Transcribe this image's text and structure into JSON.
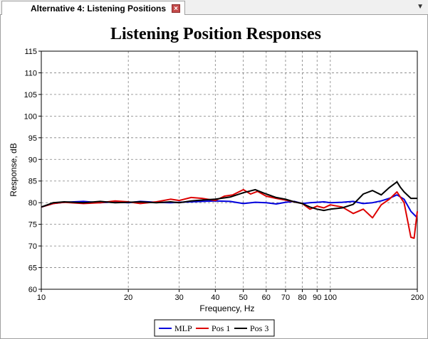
{
  "tab": {
    "label": "Alternative 4: Listening Positions",
    "close_glyph": "×",
    "menu_glyph": "▼"
  },
  "chart_data": {
    "type": "line",
    "title": "Listening Position Responses",
    "xlabel": "Frequency, Hz",
    "ylabel": "Response, dB",
    "xscale": "log",
    "xlim": [
      10,
      200
    ],
    "ylim": [
      60,
      115
    ],
    "x_ticks": [
      10,
      20,
      30,
      40,
      50,
      60,
      70,
      80,
      90,
      100,
      200
    ],
    "y_ticks": [
      60,
      65,
      70,
      75,
      80,
      85,
      90,
      95,
      100,
      105,
      110,
      115
    ],
    "grid": true,
    "legend_position": "bottom-center",
    "series": [
      {
        "name": "MLP",
        "color": "#0000dd",
        "points": [
          [
            10,
            79
          ],
          [
            11,
            79.8
          ],
          [
            12,
            80.1
          ],
          [
            14,
            80.3
          ],
          [
            16,
            80
          ],
          [
            18,
            80.2
          ],
          [
            20,
            80
          ],
          [
            22,
            80.3
          ],
          [
            25,
            80.1
          ],
          [
            28,
            80
          ],
          [
            30,
            80.1
          ],
          [
            33,
            80.2
          ],
          [
            36,
            80.3
          ],
          [
            40,
            80.4
          ],
          [
            45,
            80.3
          ],
          [
            50,
            79.8
          ],
          [
            55,
            80.1
          ],
          [
            60,
            80
          ],
          [
            65,
            79.7
          ],
          [
            70,
            80.1
          ],
          [
            75,
            80.3
          ],
          [
            80,
            79.8
          ],
          [
            85,
            80
          ],
          [
            90,
            80.1
          ],
          [
            95,
            80.2
          ],
          [
            100,
            80
          ],
          [
            110,
            80.1
          ],
          [
            120,
            80.3
          ],
          [
            130,
            79.8
          ],
          [
            140,
            80
          ],
          [
            150,
            80.4
          ],
          [
            160,
            81
          ],
          [
            170,
            81.8
          ],
          [
            180,
            80.8
          ],
          [
            190,
            78
          ],
          [
            200,
            76.5
          ]
        ]
      },
      {
        "name": "Pos 1",
        "color": "#dd0000",
        "points": [
          [
            10,
            79
          ],
          [
            11,
            79.8
          ],
          [
            12,
            80.1
          ],
          [
            14,
            79.8
          ],
          [
            16,
            80
          ],
          [
            18,
            80.4
          ],
          [
            20,
            80.2
          ],
          [
            22,
            79.8
          ],
          [
            25,
            80.2
          ],
          [
            28,
            80.8
          ],
          [
            30,
            80.5
          ],
          [
            33,
            81.2
          ],
          [
            36,
            81
          ],
          [
            40,
            80.5
          ],
          [
            43,
            81.5
          ],
          [
            46,
            81.8
          ],
          [
            50,
            83
          ],
          [
            53,
            82
          ],
          [
            56,
            82.6
          ],
          [
            60,
            81.5
          ],
          [
            65,
            81
          ],
          [
            70,
            80.6
          ],
          [
            75,
            80.2
          ],
          [
            80,
            79.8
          ],
          [
            85,
            78.5
          ],
          [
            90,
            79.2
          ],
          [
            95,
            78.8
          ],
          [
            100,
            79.5
          ],
          [
            110,
            79
          ],
          [
            120,
            77.5
          ],
          [
            130,
            78.5
          ],
          [
            140,
            76.5
          ],
          [
            150,
            79.5
          ],
          [
            160,
            80.8
          ],
          [
            170,
            82.5
          ],
          [
            180,
            80
          ],
          [
            190,
            72
          ],
          [
            195,
            71.8
          ],
          [
            200,
            78
          ]
        ]
      },
      {
        "name": "Pos 3",
        "color": "#000000",
        "points": [
          [
            10,
            79
          ],
          [
            11,
            80
          ],
          [
            12,
            80.2
          ],
          [
            14,
            80
          ],
          [
            16,
            80.3
          ],
          [
            18,
            80
          ],
          [
            20,
            80.1
          ],
          [
            22,
            80.2
          ],
          [
            25,
            80
          ],
          [
            28,
            80.2
          ],
          [
            30,
            80
          ],
          [
            33,
            80.4
          ],
          [
            36,
            80.6
          ],
          [
            40,
            80.8
          ],
          [
            45,
            81.3
          ],
          [
            50,
            82.3
          ],
          [
            55,
            83
          ],
          [
            60,
            82
          ],
          [
            65,
            81.2
          ],
          [
            70,
            80.8
          ],
          [
            75,
            80.2
          ],
          [
            80,
            79.8
          ],
          [
            85,
            79
          ],
          [
            90,
            78.5
          ],
          [
            95,
            78.2
          ],
          [
            100,
            78.5
          ],
          [
            110,
            78.8
          ],
          [
            120,
            79.6
          ],
          [
            130,
            82
          ],
          [
            140,
            82.8
          ],
          [
            150,
            81.8
          ],
          [
            160,
            83.5
          ],
          [
            170,
            84.8
          ],
          [
            175,
            83.5
          ],
          [
            180,
            82.5
          ],
          [
            190,
            81
          ],
          [
            200,
            81
          ]
        ]
      }
    ]
  }
}
